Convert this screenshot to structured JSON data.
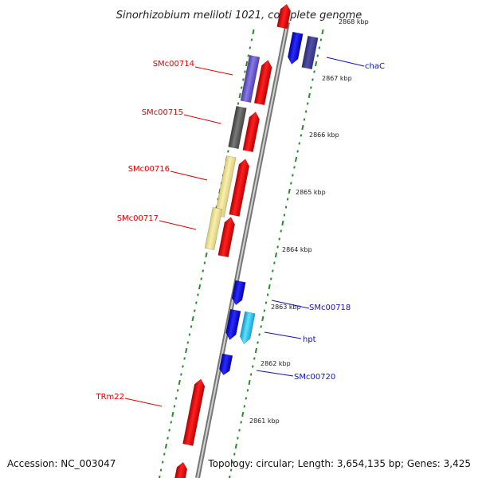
{
  "title": "Sinorhizobium meliloti 1021, complete genome",
  "footer": {
    "accession": "Accession: NC_003047",
    "summary": "Topology: circular; Length: 3,654,135 bp; Genes: 3,425"
  },
  "colors": {
    "red": "#ee0000",
    "blue": "#1010d8",
    "purple": "#6a5acd",
    "gray": "#555555",
    "yellow": "#eee08a",
    "cyan": "#22c8f0",
    "tick_green": "#2a8a2a",
    "backbone": "#909090"
  },
  "scale_labels": [
    "2868 kbp",
    "2867 kbp",
    "2866 kbp",
    "2865 kbp",
    "2864 kbp",
    "2863 kbp",
    "2862 kbp",
    "2861 kbp"
  ],
  "gene_labels": {
    "SMc00714": "SMc00714",
    "SMc00715": "SMc00715",
    "SMc00716": "SMc00716",
    "SMc00717": "SMc00717",
    "TRm22": "TRm22",
    "chaC": "chaC",
    "SMc00718": "SMc00718",
    "hpt": "hpt",
    "SMc00720": "SMc00720"
  }
}
